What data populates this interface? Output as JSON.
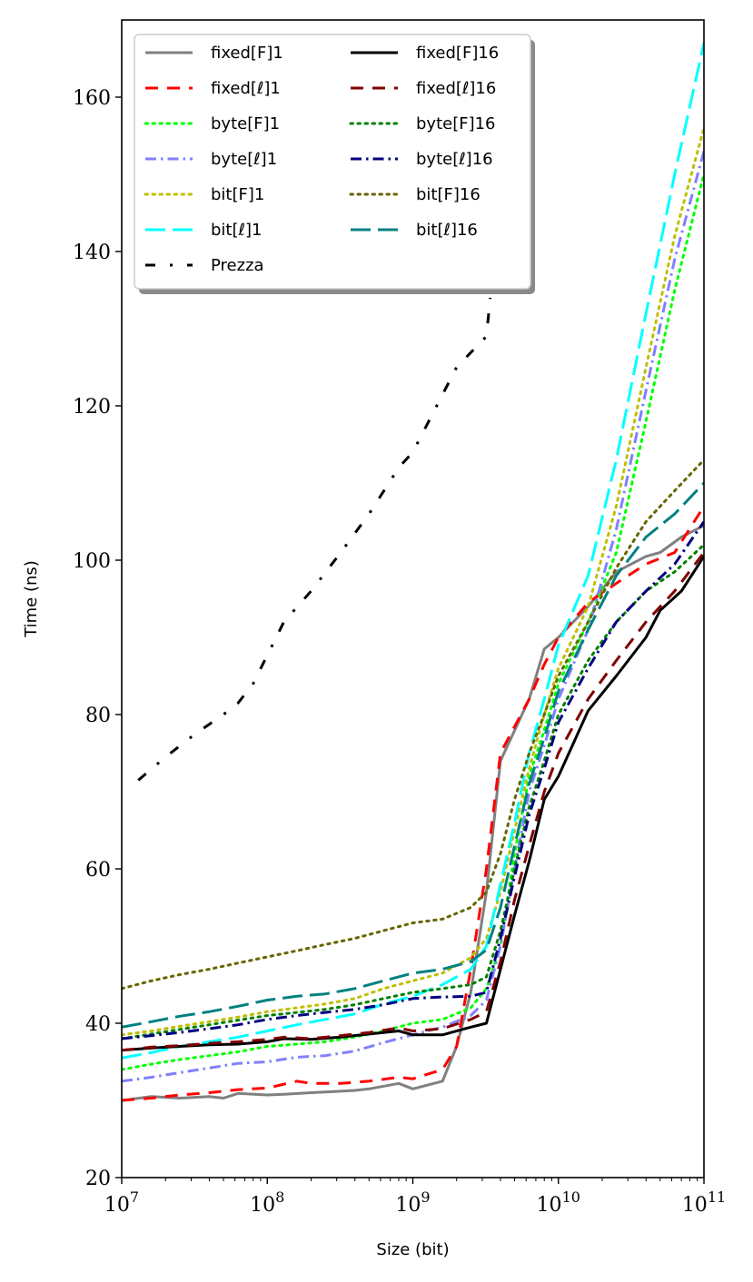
{
  "chart_data": {
    "type": "line",
    "title": "",
    "xlabel": "Size (bit)",
    "ylabel": "Time (ns)",
    "xscale": "log",
    "xlim": [
      10000000,
      100000000000
    ],
    "ylim": [
      20,
      170
    ],
    "xticks": [
      {
        "value": 10000000,
        "base": "10",
        "exp": "7"
      },
      {
        "value": 100000000,
        "base": "10",
        "exp": "8"
      },
      {
        "value": 1000000000,
        "base": "10",
        "exp": "9"
      },
      {
        "value": 10000000000,
        "base": "10",
        "exp": "10"
      },
      {
        "value": 100000000000,
        "base": "10",
        "exp": "11"
      }
    ],
    "yticks": [
      20,
      40,
      60,
      80,
      100,
      120,
      140,
      160
    ],
    "grid": false,
    "legend_position": "top-left",
    "legend_columns": 2,
    "series": [
      {
        "name": "fixed[F]1",
        "color": "#808080",
        "dash": "solid",
        "x": [
          10000000.0,
          16000000.0,
          25000000.0,
          40000000.0,
          50000000.0,
          63000000.0,
          100000000.0,
          130000000.0,
          200000000.0,
          400000000.0,
          500000000.0,
          800000000.0,
          1000000000.0,
          1600000000.0,
          2000000000.0,
          2500000000.0,
          3200000000.0,
          4000000000.0,
          6300000000.0,
          8000000000.0,
          10000000000.0,
          16000000000.0,
          25000000000.0,
          40000000000.0,
          50000000000.0,
          70000000000.0,
          100000000000.0
        ],
        "y": [
          30.0,
          30.5,
          30.3,
          30.5,
          30.3,
          30.9,
          30.7,
          30.8,
          31.0,
          31.3,
          31.5,
          32.2,
          31.5,
          32.5,
          37.0,
          44.0,
          57.0,
          74.0,
          82.0,
          88.5,
          90.0,
          94.0,
          98.5,
          100.5,
          101.0,
          103.0,
          104.5
        ]
      },
      {
        "name": "fixed[ℓ]1",
        "color": "#ff0000",
        "dash": "dashed",
        "x": [
          10000000.0,
          16000000.0,
          25000000.0,
          40000000.0,
          63000000.0,
          100000000.0,
          160000000.0,
          200000000.0,
          320000000.0,
          500000000.0,
          800000000.0,
          1000000000.0,
          1600000000.0,
          2000000000.0,
          2500000000.0,
          3200000000.0,
          4000000000.0,
          6300000000.0,
          8000000000.0,
          10000000000.0,
          16000000000.0,
          25000000000.0,
          40000000000.0,
          63000000000.0,
          100000000000.0
        ],
        "y": [
          30.0,
          30.3,
          30.7,
          31.0,
          31.4,
          31.6,
          32.5,
          32.2,
          32.2,
          32.5,
          33.0,
          32.8,
          34.0,
          37.0,
          47.0,
          60.0,
          75.0,
          82.0,
          86.5,
          90.0,
          94.5,
          97.0,
          99.5,
          101.0,
          107.0
        ]
      },
      {
        "name": "byte[F]1",
        "color": "#00ff00",
        "dash": "dotted",
        "x": [
          10000000.0,
          16000000.0,
          25000000.0,
          40000000.0,
          63000000.0,
          100000000.0,
          160000000.0,
          250000000.0,
          400000000.0,
          630000000.0,
          1000000000.0,
          1600000000.0,
          2500000000.0,
          3200000000.0,
          4000000000.0,
          5000000000.0,
          6300000000.0,
          8000000000.0,
          10000000000.0,
          16000000000.0,
          25000000000.0,
          40000000000.0,
          63000000000.0,
          100000000000.0
        ],
        "y": [
          34.0,
          34.7,
          35.3,
          35.8,
          36.3,
          37.0,
          37.3,
          37.6,
          38.2,
          39.0,
          40.0,
          40.5,
          42.0,
          44.5,
          50.0,
          62.0,
          72.0,
          78.0,
          84.0,
          92.0,
          101.0,
          118.0,
          135.0,
          150.0
        ]
      },
      {
        "name": "byte[ℓ]1",
        "color": "#8080ff",
        "dash": "dashdot",
        "x": [
          10000000.0,
          16000000.0,
          25000000.0,
          40000000.0,
          63000000.0,
          100000000.0,
          160000000.0,
          250000000.0,
          400000000.0,
          630000000.0,
          1000000000.0,
          1600000000.0,
          2500000000.0,
          3200000000.0,
          4000000000.0,
          5000000000.0,
          6300000000.0,
          8000000000.0,
          10000000000.0,
          16000000000.0,
          25000000000.0,
          40000000000.0,
          63000000000.0,
          100000000000.0
        ],
        "y": [
          32.5,
          33.0,
          33.6,
          34.2,
          34.8,
          35.0,
          35.6,
          35.8,
          36.4,
          37.5,
          38.5,
          39.5,
          41.0,
          43.0,
          50.0,
          60.0,
          70.0,
          76.0,
          82.0,
          91.0,
          104.0,
          122.0,
          139.0,
          153.0
        ]
      },
      {
        "name": "bit[F]1",
        "color": "#bfbf00",
        "dash": "dotted",
        "x": [
          10000000.0,
          16000000.0,
          25000000.0,
          40000000.0,
          63000000.0,
          100000000.0,
          160000000.0,
          250000000.0,
          400000000.0,
          630000000.0,
          1000000000.0,
          1600000000.0,
          2500000000.0,
          3200000000.0,
          4000000000.0,
          5000000000.0,
          6300000000.0,
          8000000000.0,
          10000000000.0,
          16000000000.0,
          25000000000.0,
          40000000000.0,
          63000000000.0,
          100000000000.0
        ],
        "y": [
          38.5,
          39.0,
          39.6,
          40.2,
          40.8,
          41.5,
          42.0,
          42.5,
          43.2,
          44.5,
          45.5,
          46.5,
          48.5,
          51.0,
          57.0,
          65.0,
          73.0,
          80.0,
          86.0,
          94.0,
          107.0,
          125.0,
          142.0,
          156.0
        ]
      },
      {
        "name": "bit[ℓ]1",
        "color": "#00ffff",
        "dash": "longdash",
        "x": [
          10000000.0,
          16000000.0,
          25000000.0,
          40000000.0,
          63000000.0,
          100000000.0,
          160000000.0,
          250000000.0,
          400000000.0,
          630000000.0,
          1000000000.0,
          1600000000.0,
          2500000000.0,
          3200000000.0,
          4000000000.0,
          5000000000.0,
          6300000000.0,
          8000000000.0,
          10000000000.0,
          16000000000.0,
          25000000000.0,
          40000000000.0,
          63000000000.0,
          100000000000.0
        ],
        "y": [
          35.5,
          36.2,
          37.0,
          37.6,
          38.2,
          39.0,
          39.8,
          40.5,
          41.2,
          42.5,
          43.5,
          45.0,
          47.0,
          50.0,
          58.0,
          66.0,
          75.0,
          82.0,
          89.0,
          98.0,
          113.0,
          132.0,
          150.0,
          167.0
        ]
      },
      {
        "name": "Prezza",
        "color": "#000000",
        "dash": "prezza",
        "x": [
          13000000.0,
          20000000.0,
          32000000.0,
          50000000.0,
          63000000.0,
          80000000.0,
          130000000.0,
          200000000.0,
          320000000.0,
          500000000.0,
          800000000.0,
          1000000000.0,
          2000000000.0,
          3200000000.0,
          3400000000.0
        ],
        "y": [
          71.5,
          74.5,
          77.5,
          80.0,
          81.5,
          84.0,
          92.0,
          96.0,
          101.0,
          106.0,
          112.0,
          114.0,
          125.0,
          129.0,
          134.0
        ]
      },
      {
        "name": "fixed[F]16",
        "color": "#000000",
        "dash": "solid",
        "x": [
          10000000.0,
          16000000.0,
          25000000.0,
          40000000.0,
          63000000.0,
          100000000.0,
          130000000.0,
          200000000.0,
          320000000.0,
          500000000.0,
          800000000.0,
          1000000000.0,
          1600000000.0,
          2500000000.0,
          3200000000.0,
          4000000000.0,
          5000000000.0,
          6300000000.0,
          8000000000.0,
          10000000000.0,
          16000000000.0,
          25000000000.0,
          40000000000.0,
          50000000000.0,
          70000000000.0,
          100000000000.0
        ],
        "y": [
          36.5,
          36.8,
          37.0,
          37.2,
          37.3,
          37.6,
          38.0,
          37.9,
          38.2,
          38.6,
          39.0,
          38.5,
          38.5,
          39.5,
          40.0,
          47.0,
          54.0,
          61.0,
          69.0,
          72.0,
          80.5,
          85.0,
          90.0,
          93.5,
          96.0,
          100.5
        ]
      },
      {
        "name": "fixed[ℓ]16",
        "color": "#800000",
        "dash": "dashed",
        "x": [
          10000000.0,
          16000000.0,
          25000000.0,
          40000000.0,
          63000000.0,
          100000000.0,
          130000000.0,
          200000000.0,
          320000000.0,
          500000000.0,
          800000000.0,
          1000000000.0,
          1600000000.0,
          2500000000.0,
          3200000000.0,
          4000000000.0,
          5000000000.0,
          6300000000.0,
          8000000000.0,
          10000000000.0,
          16000000000.0,
          25000000000.0,
          40000000000.0,
          63000000000.0,
          100000000000.0
        ],
        "y": [
          36.5,
          36.9,
          37.1,
          37.4,
          37.6,
          37.9,
          38.2,
          38.0,
          38.4,
          38.8,
          39.4,
          39.0,
          39.3,
          40.5,
          41.5,
          48.0,
          56.0,
          63.0,
          70.0,
          75.0,
          82.0,
          87.0,
          92.0,
          96.0,
          101.0
        ]
      },
      {
        "name": "byte[F]16",
        "color": "#008000",
        "dash": "dotted",
        "x": [
          10000000.0,
          16000000.0,
          25000000.0,
          40000000.0,
          63000000.0,
          100000000.0,
          160000000.0,
          250000000.0,
          400000000.0,
          630000000.0,
          1000000000.0,
          1600000000.0,
          2500000000.0,
          3200000000.0,
          4000000000.0,
          5000000000.0,
          6300000000.0,
          8000000000.0,
          10000000000.0,
          16000000000.0,
          25000000000.0,
          40000000000.0,
          63000000000.0,
          100000000000.0
        ],
        "y": [
          38.0,
          38.6,
          39.2,
          39.8,
          40.4,
          41.0,
          41.4,
          41.8,
          42.4,
          43.2,
          44.0,
          44.5,
          45.0,
          46.0,
          52.0,
          60.0,
          68.0,
          74.0,
          80.0,
          87.0,
          92.0,
          96.0,
          98.5,
          102.0
        ]
      },
      {
        "name": "byte[ℓ]16",
        "color": "#000080",
        "dash": "dashdot",
        "x": [
          10000000.0,
          16000000.0,
          25000000.0,
          40000000.0,
          63000000.0,
          100000000.0,
          160000000.0,
          250000000.0,
          400000000.0,
          630000000.0,
          1000000000.0,
          1600000000.0,
          2500000000.0,
          3200000000.0,
          4000000000.0,
          5000000000.0,
          6300000000.0,
          8000000000.0,
          10000000000.0,
          16000000000.0,
          25000000000.0,
          40000000000.0,
          63000000000.0,
          100000000000.0
        ],
        "y": [
          38.0,
          38.4,
          38.8,
          39.3,
          39.8,
          40.5,
          41.0,
          41.4,
          41.8,
          42.4,
          43.2,
          43.4,
          43.5,
          44.0,
          51.0,
          59.0,
          67.0,
          73.0,
          79.0,
          86.0,
          92.0,
          96.0,
          99.5,
          105.0
        ]
      },
      {
        "name": "bit[F]16",
        "color": "#666600",
        "dash": "dotted",
        "x": [
          10000000.0,
          16000000.0,
          25000000.0,
          40000000.0,
          63000000.0,
          100000000.0,
          160000000.0,
          250000000.0,
          400000000.0,
          630000000.0,
          1000000000.0,
          1600000000.0,
          2500000000.0,
          3200000000.0,
          4000000000.0,
          5000000000.0,
          6300000000.0,
          8000000000.0,
          10000000000.0,
          16000000000.0,
          25000000000.0,
          40000000000.0,
          63000000000.0,
          100000000000.0
        ],
        "y": [
          44.5,
          45.5,
          46.3,
          47.0,
          47.8,
          48.6,
          49.4,
          50.2,
          51.0,
          52.0,
          53.0,
          53.5,
          55.0,
          57.0,
          62.0,
          69.0,
          75.0,
          80.0,
          85.0,
          92.0,
          99.0,
          105.0,
          109.0,
          113.0
        ]
      },
      {
        "name": "bit[ℓ]16",
        "color": "#008080",
        "dash": "longdash",
        "x": [
          10000000.0,
          16000000.0,
          25000000.0,
          40000000.0,
          63000000.0,
          100000000.0,
          160000000.0,
          250000000.0,
          400000000.0,
          630000000.0,
          1000000000.0,
          1600000000.0,
          2500000000.0,
          3200000000.0,
          4000000000.0,
          5000000000.0,
          6300000000.0,
          8000000000.0,
          10000000000.0,
          16000000000.0,
          25000000000.0,
          40000000000.0,
          63000000000.0,
          100000000000.0
        ],
        "y": [
          39.5,
          40.2,
          40.9,
          41.5,
          42.2,
          43.0,
          43.5,
          43.8,
          44.5,
          45.5,
          46.5,
          47.0,
          48.0,
          49.5,
          55.0,
          63.0,
          71.0,
          77.0,
          83.0,
          91.0,
          98.0,
          103.0,
          106.0,
          110.0
        ]
      }
    ]
  }
}
